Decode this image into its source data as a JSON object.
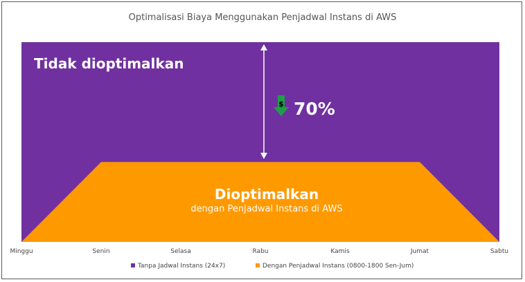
{
  "chart_data": {
    "type": "area",
    "title": "Optimalisasi Biaya Menggunakan Penjadwal Instans di AWS",
    "categories": [
      "Minggu",
      "Senin",
      "Selasa",
      "Rabu",
      "Kamis",
      "Jumat",
      "Sabtu"
    ],
    "ylim": [
      0,
      100
    ],
    "series": [
      {
        "name": "Tanpa Jadwal Instans (24x7)",
        "color": "#7030a0",
        "values": [
          100,
          100,
          100,
          100,
          100,
          100,
          100
        ]
      },
      {
        "name": "Dengan Penjadwal Instans (0800-1800 Sen-Jum)",
        "color": "#ff9900",
        "values": [
          0,
          40,
          40,
          40,
          40,
          40,
          0
        ]
      }
    ],
    "annotations": {
      "unoptimized_label": "Tidak dioptimalkan",
      "optimized_label": "Dioptimalkan",
      "optimized_sublabel": "dengan Penjadwal Instans di AWS",
      "savings_percent": "70%",
      "savings_icon": "dollar-down-arrow-icon",
      "savings_icon_symbol": "$",
      "savings_icon_color": "#1e9e4a"
    },
    "legend": "bottom",
    "grid": false
  }
}
